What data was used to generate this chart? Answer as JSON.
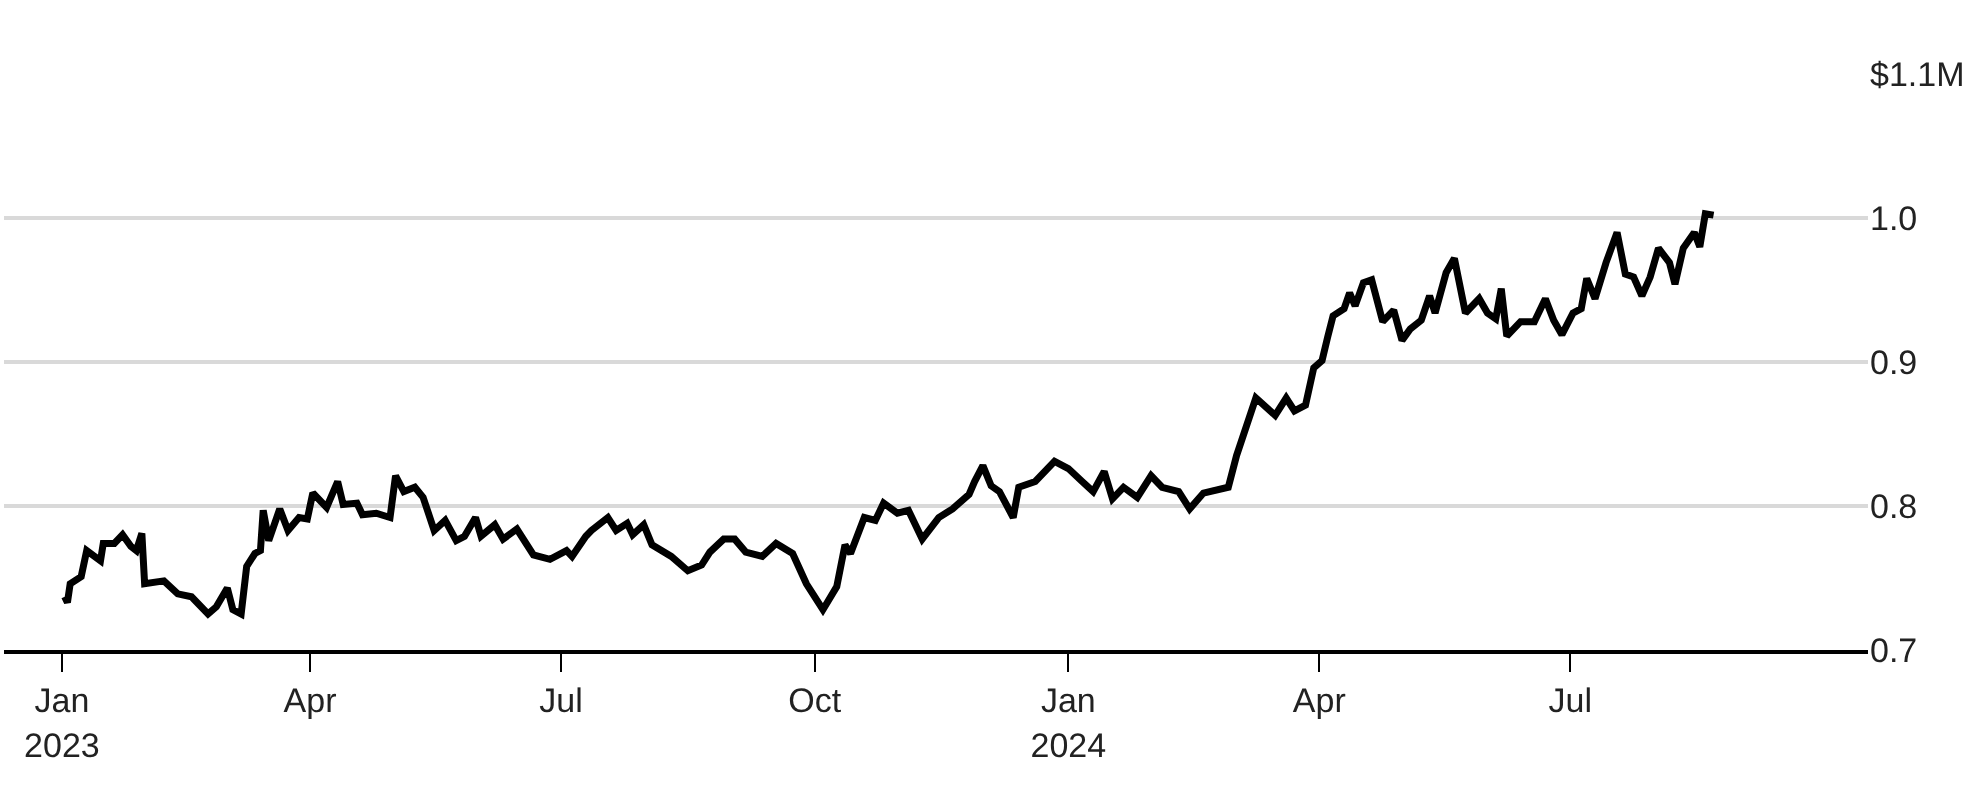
{
  "chart_data": {
    "type": "line",
    "x": [
      "2023-01-02",
      "2023-01-03",
      "2023-01-04",
      "2023-01-08",
      "2023-01-10",
      "2023-01-15",
      "2023-01-16",
      "2023-01-20",
      "2023-01-23",
      "2023-01-26",
      "2023-01-28",
      "2023-01-30",
      "2023-01-31",
      "2023-02-07",
      "2023-02-12",
      "2023-02-17",
      "2023-02-23",
      "2023-02-26",
      "2023-03-02",
      "2023-03-04",
      "2023-03-07",
      "2023-03-09",
      "2023-03-12",
      "2023-03-14",
      "2023-03-15",
      "2023-03-17",
      "2023-03-21",
      "2023-03-24",
      "2023-03-28",
      "2023-03-31",
      "2023-04-02",
      "2023-04-07",
      "2023-04-11",
      "2023-04-13",
      "2023-04-18",
      "2023-04-20",
      "2023-04-25",
      "2023-04-30",
      "2023-05-02",
      "2023-05-05",
      "2023-05-09",
      "2023-05-12",
      "2023-05-16",
      "2023-05-20",
      "2023-05-24",
      "2023-05-27",
      "2023-05-31",
      "2023-06-02",
      "2023-06-07",
      "2023-06-10",
      "2023-06-15",
      "2023-06-21",
      "2023-06-27",
      "2023-07-03",
      "2023-07-05",
      "2023-07-10",
      "2023-07-12",
      "2023-07-18",
      "2023-07-21",
      "2023-07-25",
      "2023-07-27",
      "2023-07-31",
      "2023-08-03",
      "2023-08-10",
      "2023-08-16",
      "2023-08-21",
      "2023-08-24",
      "2023-08-29",
      "2023-09-02",
      "2023-09-06",
      "2023-09-12",
      "2023-09-17",
      "2023-09-23",
      "2023-09-28",
      "2023-10-04",
      "2023-10-09",
      "2023-10-12",
      "2023-10-14",
      "2023-10-19",
      "2023-10-23",
      "2023-10-26",
      "2023-10-31",
      "2023-11-04",
      "2023-11-09",
      "2023-11-15",
      "2023-11-20",
      "2023-11-26",
      "2023-11-28",
      "2023-12-01",
      "2023-12-04",
      "2023-12-07",
      "2023-12-12",
      "2023-12-14",
      "2023-12-20",
      "2023-12-27",
      "2024-01-01",
      "2024-01-06",
      "2024-01-10",
      "2024-01-14",
      "2024-01-17",
      "2024-01-21",
      "2024-01-26",
      "2024-01-31",
      "2024-02-04",
      "2024-02-10",
      "2024-02-14",
      "2024-02-19",
      "2024-02-28",
      "2024-03-02",
      "2024-03-09",
      "2024-03-16",
      "2024-03-20",
      "2024-03-23",
      "2024-03-27",
      "2024-03-30",
      "2024-04-02",
      "2024-04-04",
      "2024-04-06",
      "2024-04-10",
      "2024-04-12",
      "2024-04-14",
      "2024-04-17",
      "2024-04-20",
      "2024-04-24",
      "2024-04-28",
      "2024-05-01",
      "2024-05-04",
      "2024-05-08",
      "2024-05-11",
      "2024-05-13",
      "2024-05-17",
      "2024-05-20",
      "2024-05-24",
      "2024-05-29",
      "2024-06-01",
      "2024-06-04",
      "2024-06-06",
      "2024-06-08",
      "2024-06-13",
      "2024-06-18",
      "2024-06-22",
      "2024-06-25",
      "2024-06-28",
      "2024-07-02",
      "2024-07-05",
      "2024-07-07",
      "2024-07-10",
      "2024-07-14",
      "2024-07-18",
      "2024-07-21",
      "2024-07-24",
      "2024-07-27",
      "2024-07-30",
      "2024-08-02",
      "2024-08-06",
      "2024-08-08",
      "2024-08-11",
      "2024-08-15",
      "2024-08-17",
      "2024-08-19",
      "2024-08-22"
    ],
    "series": [
      {
        "color": "#000000",
        "values": [
          0.737,
          0.733,
          0.746,
          0.751,
          0.769,
          0.762,
          0.774,
          0.774,
          0.78,
          0.772,
          0.769,
          0.781,
          0.746,
          0.748,
          0.739,
          0.737,
          0.725,
          0.73,
          0.743,
          0.728,
          0.725,
          0.758,
          0.767,
          0.769,
          0.797,
          0.776,
          0.798,
          0.783,
          0.792,
          0.791,
          0.809,
          0.799,
          0.817,
          0.801,
          0.802,
          0.794,
          0.795,
          0.792,
          0.821,
          0.81,
          0.813,
          0.806,
          0.783,
          0.79,
          0.776,
          0.779,
          0.792,
          0.779,
          0.787,
          0.777,
          0.784,
          0.766,
          0.763,
          0.769,
          0.765,
          0.779,
          0.783,
          0.792,
          0.783,
          0.788,
          0.78,
          0.787,
          0.773,
          0.765,
          0.755,
          0.759,
          0.768,
          0.777,
          0.777,
          0.768,
          0.765,
          0.774,
          0.767,
          0.746,
          0.728,
          0.744,
          0.773,
          0.767,
          0.792,
          0.79,
          0.802,
          0.795,
          0.797,
          0.777,
          0.792,
          0.798,
          0.808,
          0.817,
          0.828,
          0.814,
          0.81,
          0.792,
          0.813,
          0.817,
          0.831,
          0.826,
          0.817,
          0.81,
          0.824,
          0.805,
          0.813,
          0.806,
          0.821,
          0.813,
          0.81,
          0.798,
          0.809,
          0.813,
          0.835,
          0.875,
          0.863,
          0.875,
          0.866,
          0.87,
          0.896,
          0.901,
          0.917,
          0.932,
          0.937,
          0.948,
          0.939,
          0.955,
          0.957,
          0.928,
          0.936,
          0.915,
          0.923,
          0.929,
          0.946,
          0.934,
          0.962,
          0.972,
          0.934,
          0.944,
          0.934,
          0.93,
          0.951,
          0.918,
          0.928,
          0.928,
          0.944,
          0.929,
          0.919,
          0.934,
          0.937,
          0.958,
          0.944,
          0.969,
          0.99,
          0.961,
          0.959,
          0.946,
          0.959,
          0.979,
          0.969,
          0.954,
          0.979,
          0.99,
          0.98,
          1.003,
          1.002
        ]
      }
    ],
    "xlim": [
      "2022-12-11",
      "2024-10-17"
    ],
    "xticks": [
      {
        "value": "2023-01-01",
        "label": "Jan\n2023"
      },
      {
        "value": "2023-04-01",
        "label": "Apr"
      },
      {
        "value": "2023-07-01",
        "label": "Jul"
      },
      {
        "value": "2023-10-01",
        "label": "Oct"
      },
      {
        "value": "2024-01-01",
        "label": "Jan\n2024"
      },
      {
        "value": "2024-04-01",
        "label": "Apr"
      },
      {
        "value": "2024-07-01",
        "label": "Jul"
      }
    ],
    "ylim": [
      0.7,
      1.1
    ],
    "yticks": [
      {
        "value": 0.7,
        "label": "0.7"
      },
      {
        "value": 0.8,
        "label": "0.8"
      },
      {
        "value": 0.9,
        "label": "0.9"
      },
      {
        "value": 1.0,
        "label": "1.0"
      },
      {
        "value": 1.1,
        "label": "$1.1M"
      }
    ],
    "grid": "y",
    "marker": "none",
    "line_style": "solid"
  }
}
